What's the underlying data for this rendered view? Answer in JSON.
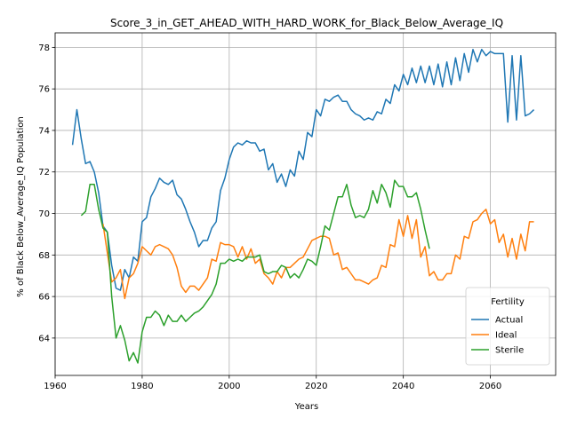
{
  "chart_data": {
    "type": "line",
    "title": "Score_3_in_GET_AHEAD_WITH_HARD_WORK_for_Black_Below_Average_IQ",
    "xlabel": "Years",
    "ylabel": "% of Black Below_Average_IQ Population",
    "xlim": [
      1960,
      2075
    ],
    "ylim": [
      62.2,
      78.7
    ],
    "xticks": [
      1960,
      1980,
      2000,
      2020,
      2040,
      2060
    ],
    "yticks": [
      64,
      66,
      68,
      70,
      72,
      74,
      76,
      78
    ],
    "grid": true,
    "legend": {
      "title": "Fertility",
      "position": "lower right"
    },
    "series": [
      {
        "name": "Actual",
        "color": "#1f77b4",
        "x": [
          1964,
          1965,
          1966,
          1967,
          1968,
          1969,
          1970,
          1971,
          1972,
          1973,
          1974,
          1975,
          1976,
          1977,
          1978,
          1979,
          1980,
          1981,
          1982,
          1983,
          1984,
          1985,
          1986,
          1987,
          1988,
          1989,
          1990,
          1991,
          1992,
          1993,
          1994,
          1995,
          1996,
          1997,
          1998,
          1999,
          2000,
          2001,
          2002,
          2003,
          2004,
          2005,
          2006,
          2007,
          2008,
          2009,
          2010,
          2011,
          2012,
          2013,
          2014,
          2015,
          2016,
          2017,
          2018,
          2019,
          2020,
          2021,
          2022,
          2023,
          2024,
          2025,
          2026,
          2027,
          2028,
          2029,
          2030,
          2031,
          2032,
          2033,
          2034,
          2035,
          2036,
          2037,
          2038,
          2039,
          2040,
          2041,
          2042,
          2043,
          2044,
          2045,
          2046,
          2047,
          2048,
          2049,
          2050,
          2051,
          2052,
          2053,
          2054,
          2055,
          2056,
          2057,
          2058,
          2059,
          2060,
          2061,
          2062,
          2063,
          2064,
          2065,
          2066,
          2067,
          2068,
          2069,
          2070
        ],
        "y": [
          73.3,
          75.0,
          73.6,
          72.4,
          72.5,
          72.0,
          71.0,
          69.4,
          69.1,
          67.5,
          66.4,
          66.3,
          67.3,
          66.9,
          67.9,
          67.7,
          69.6,
          69.8,
          70.8,
          71.2,
          71.7,
          71.5,
          71.4,
          71.6,
          70.9,
          70.7,
          70.2,
          69.6,
          69.1,
          68.4,
          68.7,
          68.7,
          69.3,
          69.6,
          71.1,
          71.7,
          72.6,
          73.2,
          73.4,
          73.3,
          73.5,
          73.4,
          73.4,
          73.0,
          73.1,
          72.1,
          72.4,
          71.5,
          71.9,
          71.3,
          72.1,
          71.8,
          73.0,
          72.6,
          73.9,
          73.7,
          75.0,
          74.7,
          75.5,
          75.4,
          75.6,
          75.7,
          75.4,
          75.4,
          75.0,
          74.8,
          74.7,
          74.5,
          74.6,
          74.5,
          74.9,
          74.8,
          75.5,
          75.3,
          76.2,
          75.9,
          76.7,
          76.2,
          77.0,
          76.3,
          77.1,
          76.3,
          77.1,
          76.2,
          77.2,
          76.1,
          77.3,
          76.2,
          77.5,
          76.4,
          77.7,
          76.8,
          77.9,
          77.3,
          77.9,
          77.6,
          77.8,
          77.7,
          77.7,
          77.7,
          74.4,
          77.6,
          74.5,
          77.6,
          74.7,
          74.8,
          75.0
        ]
      },
      {
        "name": "Ideal",
        "color": "#ff7f0e",
        "x": [
          1971,
          1972,
          1973,
          1974,
          1975,
          1976,
          1977,
          1978,
          1979,
          1980,
          1981,
          1982,
          1983,
          1984,
          1985,
          1986,
          1987,
          1988,
          1989,
          1990,
          1991,
          1992,
          1993,
          1994,
          1995,
          1996,
          1997,
          1998,
          1999,
          2000,
          2001,
          2002,
          2003,
          2004,
          2005,
          2006,
          2007,
          2008,
          2009,
          2010,
          2011,
          2012,
          2013,
          2014,
          2015,
          2016,
          2017,
          2018,
          2019,
          2020,
          2021,
          2022,
          2023,
          2024,
          2025,
          2026,
          2027,
          2028,
          2029,
          2030,
          2031,
          2032,
          2033,
          2034,
          2035,
          2036,
          2037,
          2038,
          2039,
          2040,
          2041,
          2042,
          2043,
          2044,
          2045,
          2046,
          2047,
          2048,
          2049,
          2050,
          2051,
          2052,
          2053,
          2054,
          2055,
          2056,
          2057,
          2058,
          2059,
          2060,
          2061,
          2062,
          2063,
          2064,
          2065,
          2066,
          2067,
          2068,
          2069,
          2070
        ],
        "y": [
          69.5,
          68.1,
          66.7,
          66.9,
          67.3,
          65.9,
          66.9,
          67.1,
          67.6,
          68.4,
          68.2,
          68.0,
          68.4,
          68.5,
          68.4,
          68.3,
          68.0,
          67.4,
          66.5,
          66.2,
          66.5,
          66.5,
          66.3,
          66.6,
          66.9,
          67.8,
          67.7,
          68.6,
          68.5,
          68.5,
          68.4,
          67.9,
          68.4,
          67.8,
          68.3,
          67.6,
          67.8,
          67.1,
          66.9,
          66.6,
          67.2,
          66.9,
          67.4,
          67.4,
          67.6,
          67.8,
          67.9,
          68.3,
          68.7,
          68.8,
          68.9,
          68.9,
          68.8,
          68.0,
          68.1,
          67.3,
          67.4,
          67.1,
          66.8,
          66.8,
          66.7,
          66.6,
          66.8,
          66.9,
          67.5,
          67.4,
          68.5,
          68.4,
          69.7,
          68.9,
          69.9,
          68.8,
          69.7,
          67.9,
          68.4,
          67.0,
          67.2,
          66.8,
          66.8,
          67.1,
          67.1,
          68.0,
          67.8,
          68.9,
          68.8,
          69.6,
          69.7,
          70.0,
          70.2,
          69.5,
          69.7,
          68.6,
          69.0,
          67.9,
          68.8,
          67.8,
          69.0,
          68.2,
          69.6,
          69.6
        ]
      },
      {
        "name": "Sterile",
        "color": "#2ca02c",
        "x": [
          1966,
          1967,
          1968,
          1969,
          1970,
          1971,
          1972,
          1973,
          1974,
          1975,
          1976,
          1977,
          1978,
          1979,
          1980,
          1981,
          1982,
          1983,
          1984,
          1985,
          1986,
          1987,
          1988,
          1989,
          1990,
          1991,
          1992,
          1993,
          1994,
          1995,
          1996,
          1997,
          1998,
          1999,
          2000,
          2001,
          2002,
          2003,
          2004,
          2005,
          2006,
          2007,
          2008,
          2009,
          2010,
          2011,
          2012,
          2013,
          2014,
          2015,
          2016,
          2017,
          2018,
          2019,
          2020,
          2021,
          2022,
          2023,
          2024,
          2025,
          2026,
          2027,
          2028,
          2029,
          2030,
          2031,
          2032,
          2033,
          2034,
          2035,
          2036,
          2037,
          2038,
          2039,
          2040,
          2041,
          2042,
          2043,
          2044,
          2045,
          2046,
          2047
        ],
        "y": [
          69.9,
          70.1,
          71.4,
          71.4,
          70.2,
          69.3,
          69.1,
          66.0,
          64.0,
          64.6,
          63.9,
          62.9,
          63.3,
          62.8,
          64.3,
          65.0,
          65.0,
          65.3,
          65.1,
          64.6,
          65.1,
          64.8,
          64.8,
          65.1,
          64.8,
          65.0,
          65.2,
          65.3,
          65.5,
          65.8,
          66.1,
          66.6,
          67.6,
          67.6,
          67.8,
          67.7,
          67.8,
          67.7,
          67.9,
          67.9,
          67.9,
          68.0,
          67.2,
          67.1,
          67.2,
          67.2,
          67.5,
          67.4,
          66.9,
          67.1,
          66.9,
          67.3,
          67.8,
          67.7,
          67.5,
          68.4,
          69.4,
          69.2,
          70.0,
          70.8,
          70.8,
          71.4,
          70.4,
          69.8,
          69.9,
          69.8,
          70.2,
          71.1,
          70.5,
          71.4,
          71.0,
          70.3,
          71.6,
          71.3,
          71.3,
          70.8,
          70.8,
          71.0,
          70.2,
          69.2,
          68.3,
          null
        ]
      }
    ]
  }
}
